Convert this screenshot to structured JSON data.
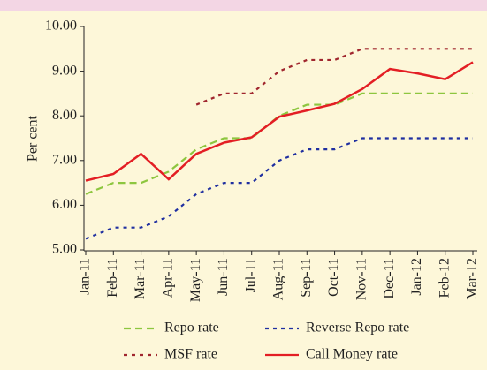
{
  "chart_data": {
    "type": "line",
    "y_label": "Per cent",
    "categories": [
      "Jan-11",
      "Feb-11",
      "Mar-11",
      "Apr-11",
      "May-11",
      "Jun-11",
      "Jul-11",
      "Aug-11",
      "Sep-11",
      "Oct-11",
      "Nov-11",
      "Dec-11",
      "Jan-12",
      "Feb-12",
      "Mar-12"
    ],
    "series": [
      {
        "name": "Repo rate",
        "color": "#8dc63f",
        "dash": "dashed",
        "values": [
          6.25,
          6.5,
          6.5,
          6.75,
          7.25,
          7.5,
          7.5,
          8.0,
          8.25,
          8.25,
          8.5,
          8.5,
          8.5,
          8.5,
          8.5
        ]
      },
      {
        "name": "Reverse Repo rate",
        "color": "#1f2fa0",
        "dash": "dotted",
        "values": [
          5.25,
          5.5,
          5.5,
          5.75,
          6.25,
          6.5,
          6.5,
          7.0,
          7.25,
          7.25,
          7.5,
          7.5,
          7.5,
          7.5,
          7.5
        ]
      },
      {
        "name": "MSF rate",
        "color": "#a0262e",
        "dash": "dotted",
        "values": [
          null,
          null,
          null,
          null,
          8.25,
          8.5,
          8.5,
          9.0,
          9.25,
          9.25,
          9.5,
          9.5,
          9.5,
          9.5,
          9.5
        ]
      },
      {
        "name": "Call Money rate",
        "color": "#e31e24",
        "dash": "solid",
        "values": [
          6.55,
          6.7,
          7.15,
          6.58,
          7.15,
          7.4,
          7.52,
          7.98,
          8.12,
          8.27,
          8.6,
          9.05,
          8.95,
          8.82,
          9.2
        ]
      }
    ],
    "ylim": [
      5,
      10
    ],
    "yticks": [
      {
        "value": 5,
        "label": "5.00"
      },
      {
        "value": 6,
        "label": "6.00"
      },
      {
        "value": 7,
        "label": "7.00"
      },
      {
        "value": 8,
        "label": "8.00"
      },
      {
        "value": 9,
        "label": "9.00"
      },
      {
        "value": 10,
        "label": "10.00"
      }
    ]
  }
}
